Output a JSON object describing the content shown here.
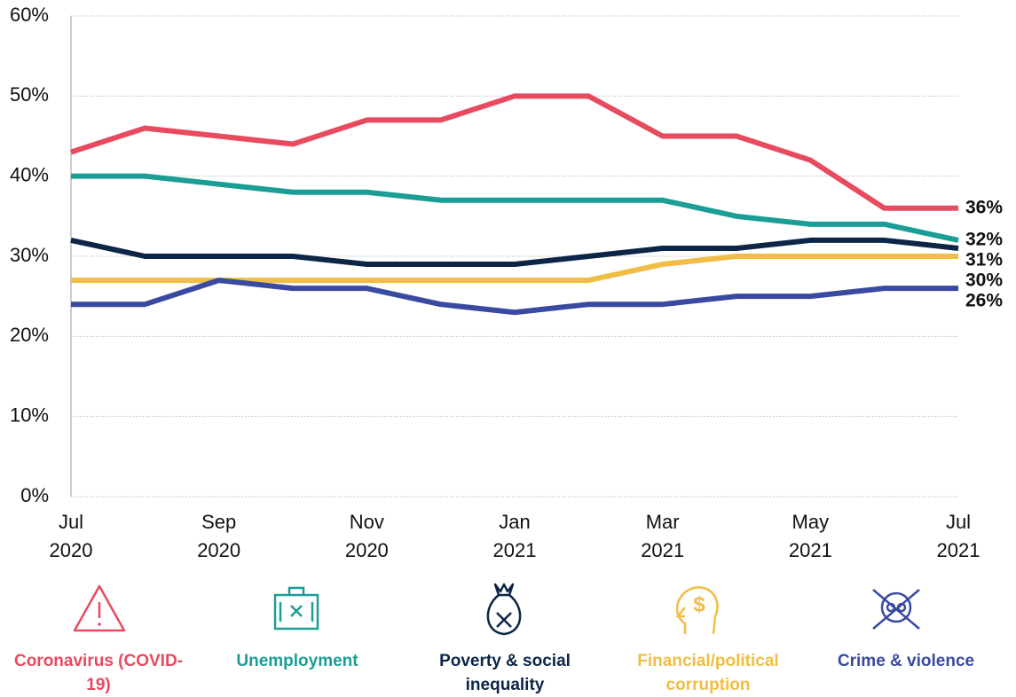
{
  "chart_data": {
    "type": "line",
    "categories": [
      "Jul 2020",
      null,
      "Sep 2020",
      null,
      "Nov 2020",
      null,
      "Jan 2021",
      null,
      "Mar 2021",
      null,
      "May 2021",
      null,
      "Jul 2021"
    ],
    "ylim": [
      0,
      60
    ],
    "yticks": [
      {
        "value": 0,
        "label": "0%"
      },
      {
        "value": 10,
        "label": "10%"
      },
      {
        "value": 20,
        "label": "20%"
      },
      {
        "value": 30,
        "label": "30%"
      },
      {
        "value": 40,
        "label": "40%"
      },
      {
        "value": 50,
        "label": "50%"
      },
      {
        "value": 60,
        "label": "60%"
      }
    ],
    "grid": true,
    "series": [
      {
        "name": "Coronavirus (COVID-19)",
        "color": "#e84a5f",
        "values": [
          43,
          46,
          45,
          44,
          47,
          47,
          50,
          50,
          45,
          45,
          42,
          36,
          36
        ],
        "value_labels": [
          null,
          null,
          null,
          null,
          null,
          null,
          null,
          null,
          null,
          null,
          null,
          null,
          "36%"
        ]
      },
      {
        "name": "Unemployment",
        "color": "#1a9e96",
        "values": [
          40,
          40,
          39,
          38,
          38,
          37,
          37,
          37,
          37,
          35,
          34,
          34,
          32
        ],
        "value_labels": [
          null,
          null,
          null,
          null,
          null,
          null,
          null,
          null,
          null,
          null,
          null,
          null,
          "32%"
        ]
      },
      {
        "name": "Poverty & social inequality",
        "color": "#0d2547",
        "values": [
          32,
          30,
          30,
          30,
          29,
          29,
          29,
          30,
          31,
          31,
          32,
          32,
          31
        ],
        "value_labels": [
          null,
          null,
          null,
          null,
          null,
          null,
          null,
          null,
          null,
          null,
          null,
          null,
          "31%"
        ]
      },
      {
        "name": "Financial/political corruption",
        "color": "#f0bd45",
        "values": [
          27,
          27,
          27,
          27,
          27,
          27,
          27,
          27,
          29,
          30,
          30,
          30,
          30
        ],
        "value_labels": [
          null,
          null,
          null,
          null,
          null,
          null,
          null,
          null,
          null,
          null,
          null,
          null,
          "30%"
        ]
      },
      {
        "name": "Crime & violence",
        "color": "#3a4aa0",
        "values": [
          24,
          24,
          27,
          26,
          26,
          24,
          23,
          24,
          24,
          25,
          25,
          26,
          26
        ],
        "value_labels": [
          null,
          null,
          null,
          null,
          null,
          null,
          null,
          null,
          null,
          null,
          null,
          null,
          "26%"
        ]
      }
    ]
  }
}
